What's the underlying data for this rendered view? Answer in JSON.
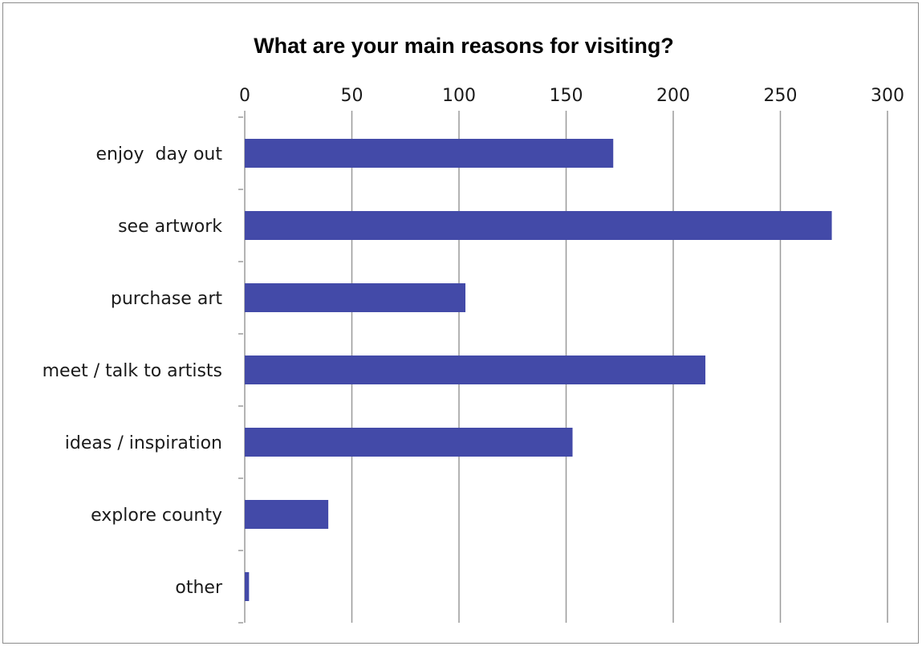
{
  "chart_data": {
    "type": "bar",
    "orientation": "horizontal",
    "title": "What are your main reasons for visiting?",
    "xlabel": "",
    "ylabel": "",
    "categories": [
      "enjoy  day out",
      "see artwork",
      "purchase art",
      "meet / talk to artists",
      "ideas / inspiration",
      "explore county",
      "other"
    ],
    "values": [
      172,
      274,
      103,
      215,
      153,
      39,
      2
    ],
    "xlim": [
      0,
      300
    ],
    "xticks": [
      "0",
      "50",
      "100",
      "150",
      "200",
      "250",
      "300"
    ],
    "x_axis_position": "top",
    "grid": true,
    "legend": "none",
    "bar_color": "#434AA8",
    "grid_color": "#9a9a9a"
  }
}
